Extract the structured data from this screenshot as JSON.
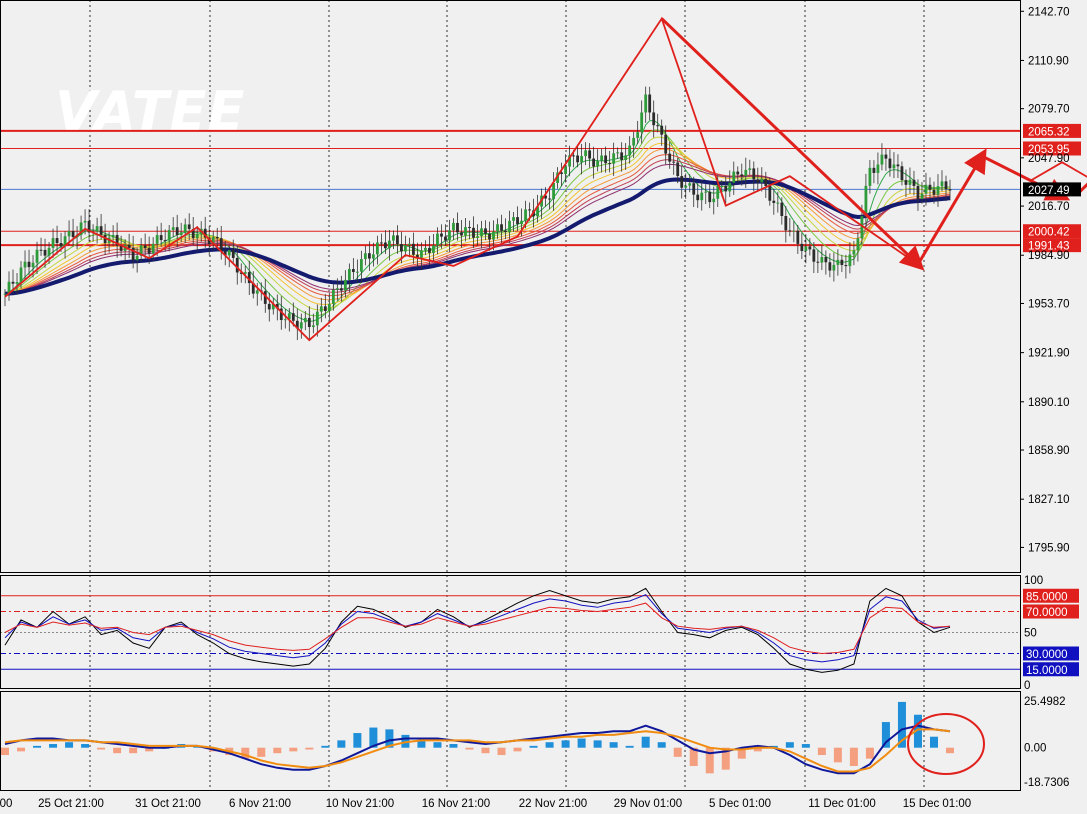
{
  "watermark": "VATEE",
  "colors": {
    "background": "#f0f0f0",
    "grid": "#000000",
    "bull_candle": "#2e9a3a",
    "bear_candle": "#2b2b2b",
    "level_line": "#e0201c",
    "pattern": "#e0201c",
    "ma_slow": "#141a6e",
    "macd_line": "#10189a",
    "signal_line": "#f08c10",
    "hist_pos": "#1e8fd8",
    "hist_neg": "#f4a080",
    "rsi_fast": "#000000",
    "rsi_mid": "#1010c0",
    "rsi_slow": "#e02020"
  },
  "chart_data": [
    {
      "type": "line",
      "panel": "price",
      "x_labels": [
        "00",
        "25 Oct 21:00",
        "31 Oct 21:00",
        "6 Nov 21:00",
        "10 Nov 21:00",
        "16 Nov 21:00",
        "22 Nov 21:00",
        "29 Nov 01:00",
        "5 Dec 01:00",
        "11 Dec 01:00",
        "15 Dec 01:00"
      ],
      "y_ticks": [
        "2142.70",
        "2110.90",
        "2079.70",
        "2047.90",
        "2016.70",
        "1984.90",
        "1953.70",
        "1921.90",
        "1890.10",
        "1858.90",
        "1827.10",
        "1795.90"
      ],
      "ylim": [
        1780,
        2150
      ],
      "levels": [
        {
          "label": "2065.32",
          "value": 2065.32,
          "style": "red-thick"
        },
        {
          "label": "2053.95",
          "value": 2053.95,
          "style": "red"
        },
        {
          "label": "2027.49",
          "value": 2027.49,
          "style": "current-price"
        },
        {
          "label": "2000.42",
          "value": 2000.42,
          "style": "red"
        },
        {
          "label": "1991.43",
          "value": 1991.43,
          "style": "red-thick"
        }
      ],
      "close_series": [
        1960,
        1975,
        1985,
        1992,
        1997,
        2005,
        1998,
        1993,
        1985,
        1990,
        1998,
        2002,
        1999,
        1995,
        1985,
        1970,
        1958,
        1948,
        1942,
        1940,
        1952,
        1966,
        1978,
        1988,
        1995,
        1990,
        1985,
        1995,
        2002,
        2000,
        1998,
        2002,
        2008,
        2014,
        2025,
        2045,
        2050,
        2045,
        2048,
        2052,
        2085,
        2060,
        2035,
        2025,
        2022,
        2030,
        2040,
        2035,
        2020,
        2000,
        1988,
        1980,
        1978,
        1985,
        2040,
        2048,
        2036,
        2025,
        2028,
        2030
      ],
      "zigzag": [
        [
          0,
          1958
        ],
        [
          5,
          2002
        ],
        [
          9,
          1983
        ],
        [
          12,
          2003
        ],
        [
          19,
          1930
        ],
        [
          25,
          1985
        ],
        [
          28,
          1978
        ],
        [
          32,
          1997
        ],
        [
          41,
          2138
        ],
        [
          45,
          2017
        ],
        [
          49,
          2036
        ],
        [
          57,
          1979
        ],
        [
          61,
          2049
        ],
        [
          64,
          2033
        ],
        [
          66,
          2045
        ],
        [
          69,
          2027
        ],
        [
          70,
          2055
        ]
      ]
    },
    {
      "type": "line",
      "panel": "oscillator",
      "y_ticks": [
        "100",
        "50",
        "0"
      ],
      "ylim": [
        0,
        100
      ],
      "levels": [
        {
          "label": "85.0000",
          "value": 85,
          "style": "red"
        },
        {
          "label": "70.0000",
          "value": 70,
          "style": "red-dashdot"
        },
        {
          "label": "50",
          "value": 50,
          "style": "grey-dotted"
        },
        {
          "label": "30.0000",
          "value": 30,
          "style": "blue-dashdot"
        },
        {
          "label": "15.0000",
          "value": 15,
          "style": "blue"
        }
      ],
      "fast_series": [
        38,
        62,
        55,
        70,
        58,
        65,
        48,
        52,
        40,
        35,
        55,
        60,
        48,
        40,
        30,
        25,
        22,
        20,
        18,
        20,
        35,
        60,
        75,
        72,
        65,
        55,
        60,
        72,
        65,
        55,
        62,
        70,
        78,
        85,
        90,
        85,
        80,
        78,
        82,
        84,
        92,
        70,
        50,
        48,
        45,
        52,
        55,
        48,
        35,
        20,
        15,
        12,
        14,
        20,
        80,
        92,
        85,
        60,
        50,
        55
      ],
      "mid_series": [
        45,
        60,
        55,
        65,
        58,
        62,
        52,
        54,
        45,
        42,
        55,
        58,
        50,
        44,
        36,
        32,
        30,
        28,
        26,
        28,
        40,
        58,
        70,
        68,
        62,
        56,
        60,
        68,
        62,
        56,
        60,
        66,
        72,
        78,
        82,
        80,
        76,
        74,
        78,
        80,
        86,
        68,
        54,
        52,
        50,
        54,
        56,
        50,
        40,
        28,
        24,
        22,
        24,
        28,
        72,
        84,
        80,
        62,
        54,
        56
      ],
      "slow_series": [
        50,
        58,
        55,
        60,
        57,
        59,
        54,
        55,
        50,
        48,
        55,
        56,
        52,
        48,
        42,
        38,
        36,
        34,
        33,
        34,
        44,
        55,
        64,
        64,
        60,
        56,
        58,
        64,
        60,
        56,
        58,
        62,
        66,
        70,
        74,
        73,
        71,
        70,
        72,
        74,
        78,
        64,
        56,
        54,
        53,
        55,
        56,
        52,
        45,
        36,
        32,
        30,
        31,
        34,
        64,
        74,
        73,
        60,
        55,
        56
      ]
    },
    {
      "type": "bar",
      "panel": "macd",
      "y_ticks": [
        "25.4982",
        "0.00",
        "-18.7306"
      ],
      "ylim": [
        -18.7306,
        25.4982
      ],
      "histogram": [
        -4,
        -2,
        1,
        2,
        3,
        2,
        -1,
        -3,
        -3,
        -2,
        0,
        2,
        1,
        -2,
        -4,
        -6,
        -5,
        -3,
        -2,
        -1,
        1,
        4,
        8,
        11,
        10,
        7,
        4,
        3,
        2,
        -1,
        -3,
        -4,
        -2,
        1,
        3,
        4,
        5,
        4,
        3,
        1,
        6,
        3,
        -5,
        -10,
        -14,
        -12,
        -6,
        -2,
        1,
        3,
        2,
        -4,
        -8,
        -10,
        -6,
        14,
        25,
        18,
        6,
        -3
      ],
      "macd_series": [
        2,
        4,
        5,
        5,
        4,
        4,
        3,
        2,
        1,
        0,
        0,
        1,
        1,
        -1,
        -3,
        -6,
        -9,
        -11,
        -12,
        -12,
        -10,
        -7,
        -3,
        1,
        4,
        5,
        5,
        5,
        4,
        3,
        2,
        3,
        4,
        5,
        6,
        7,
        8,
        8,
        9,
        9,
        12,
        9,
        4,
        -1,
        -3,
        -2,
        0,
        1,
        0,
        -4,
        -9,
        -12,
        -14,
        -14,
        -9,
        3,
        10,
        12,
        10,
        9
      ],
      "signal_series": [
        3,
        4,
        4,
        4,
        4,
        4,
        3,
        3,
        2,
        1,
        1,
        1,
        1,
        0,
        -2,
        -4,
        -7,
        -9,
        -10,
        -11,
        -10,
        -8,
        -5,
        -2,
        1,
        3,
        4,
        4,
        4,
        4,
        3,
        3,
        4,
        4,
        5,
        6,
        6,
        7,
        7,
        8,
        9,
        8,
        6,
        3,
        0,
        -1,
        -1,
        0,
        0,
        -2,
        -6,
        -10,
        -13,
        -13,
        -11,
        -4,
        4,
        10,
        10,
        9
      ]
    }
  ]
}
